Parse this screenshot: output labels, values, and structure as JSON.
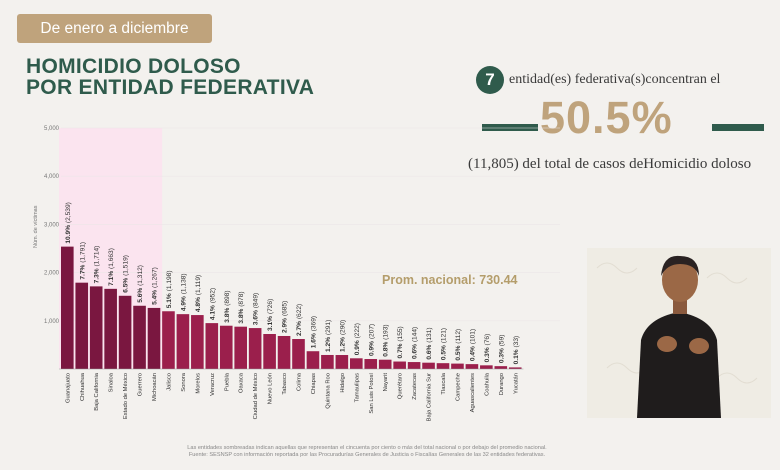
{
  "header": {
    "period_label": "De enero a diciembre",
    "title_line1": "HOMICIDIO DOLOSO",
    "title_line2": "POR ENTIDAD FEDERATIVA"
  },
  "summary": {
    "count": "7",
    "count_text": "entidad(es) federativa(s)concentran el",
    "percent": "50.5%",
    "total_text": "(11,805) del total de casos deHomicidio doloso"
  },
  "average_label": "Prom. nacional: 730.44",
  "footnotes": [
    "Las entidades sombreadas indican aquellas que representan el cincuenta por ciento o más del total nacional o por debajo del promedio nacional.",
    "Fuente: SESNSP con información reportada por las Procuradurías Generales de Justicia o Fiscalías Generales de las 32 entidades federativas."
  ],
  "colors": {
    "accent_green": "#2f5b4c",
    "gold": "#bfa37c",
    "bar_dark": "#7a1740",
    "bar_light": "#9b1f4c",
    "highlight": "#fbe4ef"
  },
  "chart_data": {
    "type": "bar",
    "ylabel": "Núm. de víctimas",
    "ylim": [
      0,
      5000
    ],
    "yticks": [
      "5,000",
      "4,000",
      "3,000",
      "2,000",
      "1,000"
    ],
    "yticks_values": [
      5000,
      4000,
      3000,
      2000,
      1000
    ],
    "average": 730.44,
    "highlighted_count": 7,
    "categories": [
      "Guanajuato",
      "Chihuahua",
      "Baja California",
      "Sinaloa",
      "Estado de México",
      "Guerrero",
      "Michoacán",
      "Jalisco",
      "Sonora",
      "Morelos",
      "Veracruz",
      "Puebla",
      "Oaxaca",
      "Ciudad de México",
      "Nuevo León",
      "Tabasco",
      "Colima",
      "Chiapas",
      "Quintana Roo",
      "Hidalgo",
      "Tamaulipas",
      "San Luis Potosí",
      "Nayarit",
      "Querétaro",
      "Zacatecas",
      "Baja California Sur",
      "Tlaxcala",
      "Campeche",
      "Aguascalientes",
      "Coahuila",
      "Durango",
      "Yucatán"
    ],
    "values": [
      2539,
      1791,
      1714,
      1663,
      1519,
      1312,
      1267,
      1198,
      1138,
      1119,
      952,
      898,
      878,
      849,
      726,
      685,
      622,
      369,
      291,
      290,
      222,
      207,
      193,
      155,
      144,
      131,
      121,
      112,
      101,
      76,
      59,
      33
    ],
    "data_labels": [
      "10.9% (2,539)",
      "7.7% (1,791)",
      "7.3% (1,714)",
      "7.1% (1,663)",
      "6.5% (1,519)",
      "5.6% (1,312)",
      "5.4% (1,267)",
      "5.1% (1,198)",
      "4.9% (1,138)",
      "4.8% (1,119)",
      "4.1% (952)",
      "3.8% (898)",
      "3.8% (878)",
      "3.6% (849)",
      "3.1% (726)",
      "2.9% (685)",
      "2.7% (622)",
      "1.6% (369)",
      "1.2% (291)",
      "1.2% (290)",
      "0.9% (222)",
      "0.9% (207)",
      "0.8% (193)",
      "0.7% (155)",
      "0.6% (144)",
      "0.6% (131)",
      "0.5% (121)",
      "0.5% (112)",
      "0.4% (101)",
      "0.3% (76)",
      "0.3% (59)",
      "0.1% (33)"
    ]
  }
}
